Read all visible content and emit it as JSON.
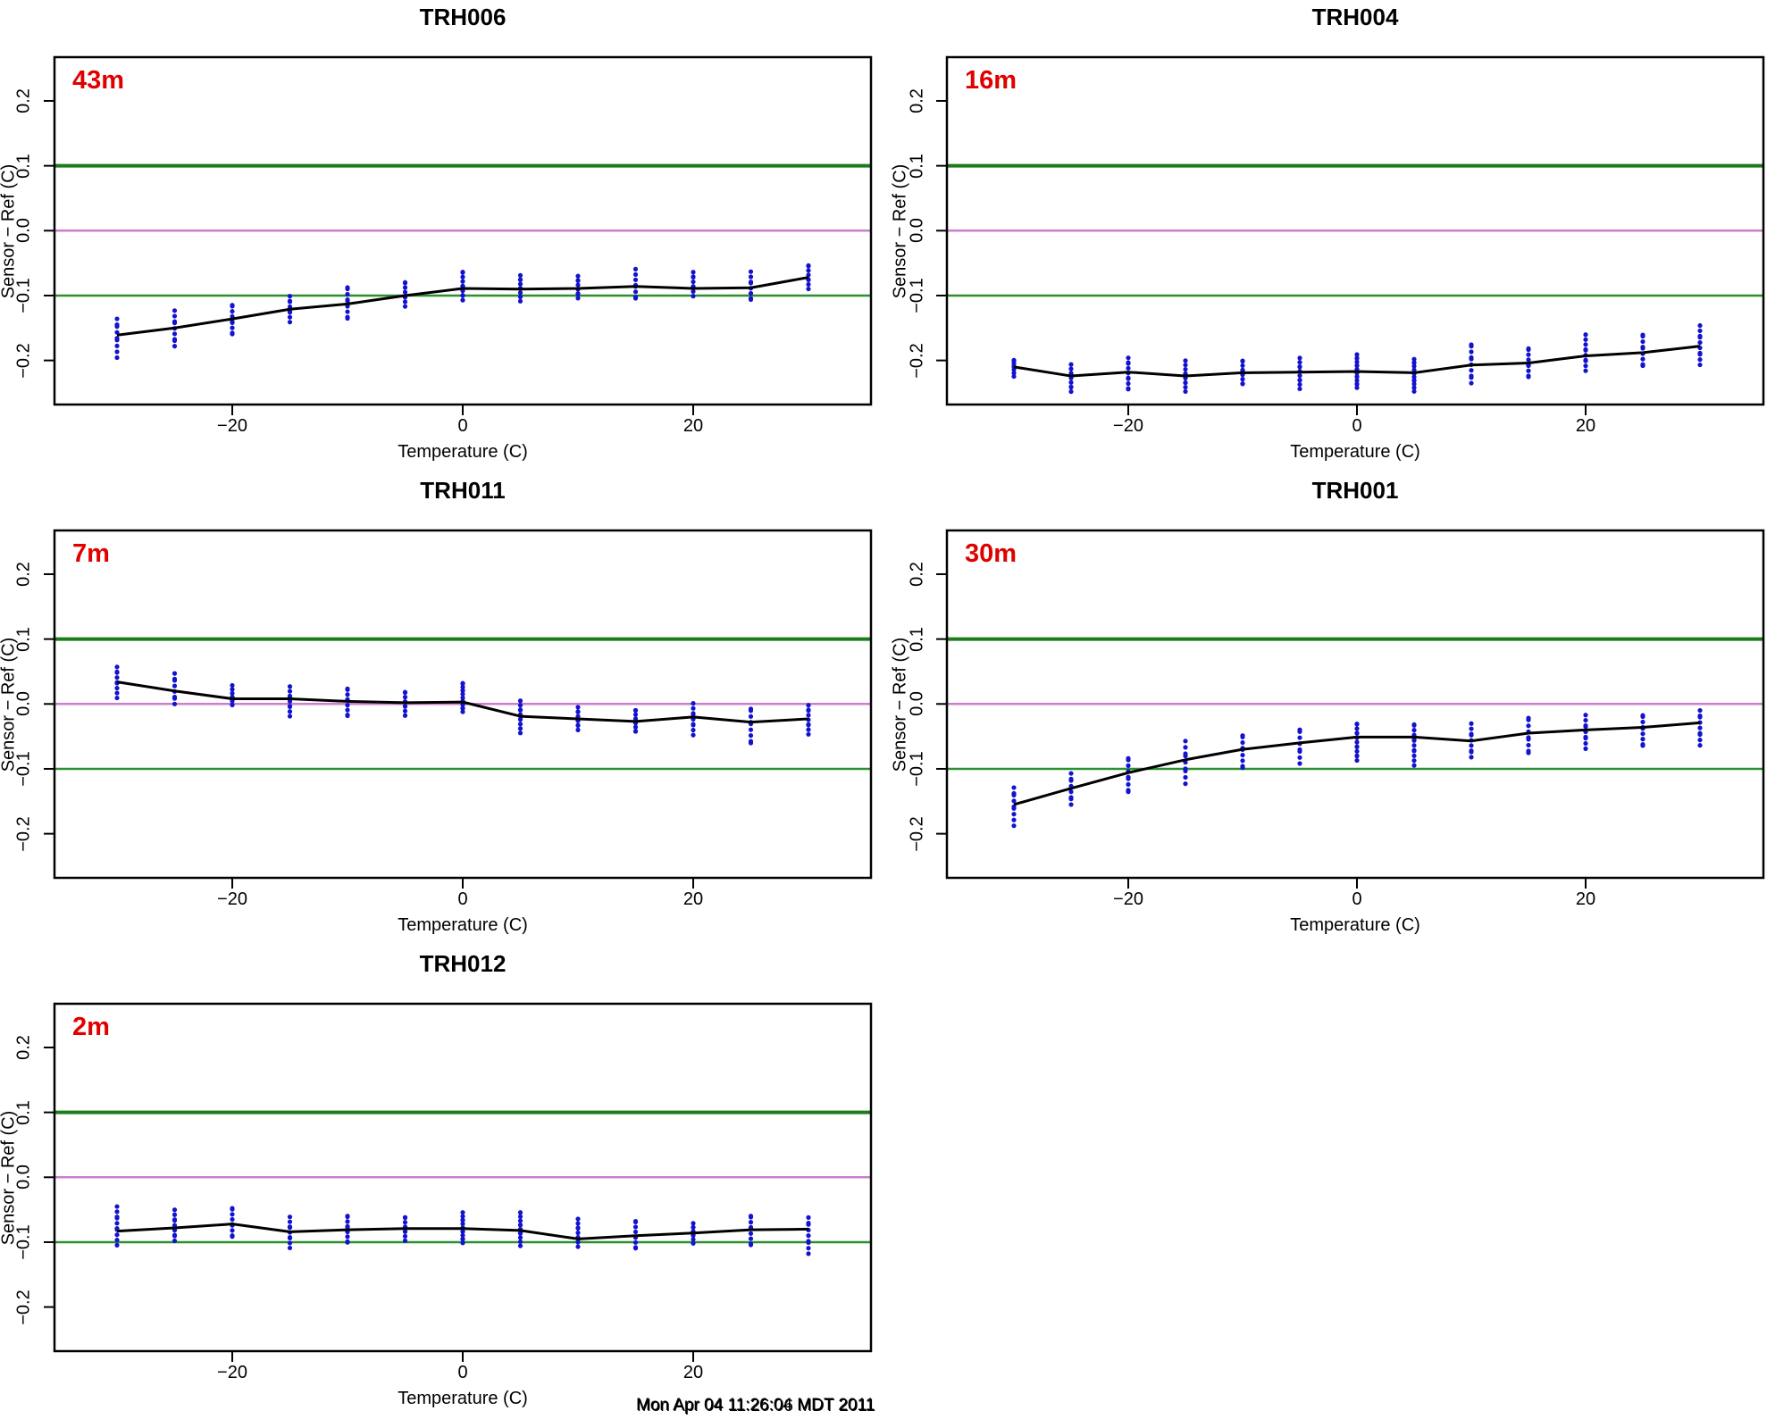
{
  "figure": {
    "background": "#ffffff",
    "timestamp_lines": [
      "Mon Apr 04 11:26:04 MDT 2011",
      "Mon Apr 04 11:26:06 MDT 2011"
    ]
  },
  "colors": {
    "point": "#1313cf",
    "mean_line": "#000000",
    "guide_upper_green": "#1c7c1c",
    "guide_zero_magenta": "#cc7ecc",
    "guide_lower_green": "#2f8f2f",
    "height_label": "#e10000",
    "frame": "#000000"
  },
  "axes": {
    "x_label": "Temperature (C)",
    "y_label": "Sensor − Ref (C)",
    "x_ticks": [
      -20,
      0,
      20
    ],
    "x_tick_labels": [
      "−20",
      "0",
      "20"
    ],
    "y_ticks": [
      0.2,
      0.1,
      0.0,
      -0.1,
      -0.2
    ],
    "y_tick_labels": [
      "0.2",
      "0.1",
      "0.0",
      "−0.1",
      "−0.2"
    ],
    "xlim": [
      -35.5,
      35.5
    ],
    "ylim": [
      -0.268,
      0.268
    ],
    "reference_lines": [
      0.1,
      0.0,
      -0.1
    ],
    "grid": "off",
    "legend": "none"
  },
  "chart_data": [
    {
      "type": "scatter",
      "title": "TRH006",
      "height_label": "43m",
      "xlabel": "Temperature (C)",
      "ylabel": "Sensor − Ref (C)",
      "x": [
        -30,
        -25,
        -20,
        -15,
        -10,
        -5,
        0,
        5,
        10,
        15,
        20,
        25,
        30
      ],
      "mean": [
        -0.161,
        -0.15,
        -0.136,
        -0.121,
        -0.113,
        -0.1,
        -0.089,
        -0.09,
        -0.089,
        -0.086,
        -0.089,
        -0.088,
        -0.072
      ],
      "clusters": [
        {
          "t": -30,
          "n": 9,
          "lo": -0.193,
          "hi": -0.135
        },
        {
          "t": -25,
          "n": 9,
          "lo": -0.178,
          "hi": -0.125
        },
        {
          "t": -20,
          "n": 9,
          "lo": -0.162,
          "hi": -0.113
        },
        {
          "t": -15,
          "n": 8,
          "lo": -0.14,
          "hi": -0.1
        },
        {
          "t": -10,
          "n": 9,
          "lo": -0.137,
          "hi": -0.085
        },
        {
          "t": -5,
          "n": 8,
          "lo": -0.115,
          "hi": -0.078
        },
        {
          "t": 0,
          "n": 10,
          "lo": -0.108,
          "hi": -0.062
        },
        {
          "t": 5,
          "n": 9,
          "lo": -0.106,
          "hi": -0.068
        },
        {
          "t": 10,
          "n": 8,
          "lo": -0.104,
          "hi": -0.07
        },
        {
          "t": 15,
          "n": 8,
          "lo": -0.107,
          "hi": -0.062
        },
        {
          "t": 20,
          "n": 8,
          "lo": -0.1,
          "hi": -0.063
        },
        {
          "t": 25,
          "n": 8,
          "lo": -0.108,
          "hi": -0.065
        },
        {
          "t": 30,
          "n": 8,
          "lo": -0.088,
          "hi": -0.052
        }
      ]
    },
    {
      "type": "scatter",
      "title": "TRH004",
      "height_label": "16m",
      "xlabel": "Temperature (C)",
      "ylabel": "Sensor − Ref (C)",
      "x": [
        -30,
        -25,
        -20,
        -15,
        -10,
        -5,
        0,
        5,
        10,
        15,
        20,
        25,
        30
      ],
      "mean": [
        -0.21,
        -0.224,
        -0.218,
        -0.224,
        -0.219,
        -0.218,
        -0.217,
        -0.219,
        -0.207,
        -0.204,
        -0.193,
        -0.188,
        -0.178
      ],
      "clusters": [
        {
          "t": -30,
          "n": 8,
          "lo": -0.222,
          "hi": -0.198
        },
        {
          "t": -25,
          "n": 9,
          "lo": -0.248,
          "hi": -0.208
        },
        {
          "t": -20,
          "n": 10,
          "lo": -0.247,
          "hi": -0.196
        },
        {
          "t": -15,
          "n": 10,
          "lo": -0.247,
          "hi": -0.203
        },
        {
          "t": -10,
          "n": 9,
          "lo": -0.238,
          "hi": -0.198
        },
        {
          "t": -5,
          "n": 10,
          "lo": -0.242,
          "hi": -0.198
        },
        {
          "t": 0,
          "n": 14,
          "lo": -0.243,
          "hi": -0.19
        },
        {
          "t": 5,
          "n": 13,
          "lo": -0.245,
          "hi": -0.198
        },
        {
          "t": 10,
          "n": 10,
          "lo": -0.235,
          "hi": -0.173
        },
        {
          "t": 15,
          "n": 9,
          "lo": -0.228,
          "hi": -0.18
        },
        {
          "t": 20,
          "n": 10,
          "lo": -0.215,
          "hi": -0.163
        },
        {
          "t": 25,
          "n": 9,
          "lo": -0.21,
          "hi": -0.158
        },
        {
          "t": 30,
          "n": 10,
          "lo": -0.205,
          "hi": -0.148
        }
      ]
    },
    {
      "type": "scatter",
      "title": "TRH011",
      "height_label": "7m",
      "xlabel": "Temperature (C)",
      "ylabel": "Sensor − Ref (C)",
      "x": [
        -30,
        -25,
        -20,
        -15,
        -10,
        -5,
        0,
        5,
        10,
        15,
        20,
        25,
        30
      ],
      "mean": [
        0.034,
        0.02,
        0.008,
        0.008,
        0.004,
        0.002,
        0.003,
        -0.019,
        -0.023,
        -0.027,
        -0.02,
        -0.028,
        -0.023
      ],
      "clusters": [
        {
          "t": -30,
          "n": 9,
          "lo": 0.012,
          "hi": 0.058
        },
        {
          "t": -25,
          "n": 8,
          "lo": 0.0,
          "hi": 0.047
        },
        {
          "t": -20,
          "n": 8,
          "lo": -0.004,
          "hi": 0.026
        },
        {
          "t": -15,
          "n": 9,
          "lo": -0.018,
          "hi": 0.026
        },
        {
          "t": -10,
          "n": 9,
          "lo": -0.02,
          "hi": 0.026
        },
        {
          "t": -5,
          "n": 8,
          "lo": -0.016,
          "hi": 0.02
        },
        {
          "t": 0,
          "n": 13,
          "lo": -0.013,
          "hi": 0.034
        },
        {
          "t": 5,
          "n": 10,
          "lo": -0.042,
          "hi": 0.004
        },
        {
          "t": 10,
          "n": 8,
          "lo": -0.04,
          "hi": -0.005
        },
        {
          "t": 15,
          "n": 9,
          "lo": -0.045,
          "hi": -0.008
        },
        {
          "t": 20,
          "n": 9,
          "lo": -0.047,
          "hi": 0.0
        },
        {
          "t": 25,
          "n": 9,
          "lo": -0.062,
          "hi": -0.005
        },
        {
          "t": 30,
          "n": 9,
          "lo": -0.045,
          "hi": -0.002
        }
      ]
    },
    {
      "type": "scatter",
      "title": "TRH001",
      "height_label": "30m",
      "xlabel": "Temperature (C)",
      "ylabel": "Sensor − Ref (C)",
      "x": [
        -30,
        -25,
        -20,
        -15,
        -10,
        -5,
        0,
        5,
        10,
        15,
        20,
        25,
        30
      ],
      "mean": [
        -0.155,
        -0.13,
        -0.106,
        -0.086,
        -0.07,
        -0.06,
        -0.051,
        -0.051,
        -0.057,
        -0.045,
        -0.04,
        -0.036,
        -0.029
      ],
      "clusters": [
        {
          "t": -30,
          "n": 9,
          "lo": -0.185,
          "hi": -0.128
        },
        {
          "t": -25,
          "n": 8,
          "lo": -0.155,
          "hi": -0.107
        },
        {
          "t": -20,
          "n": 9,
          "lo": -0.138,
          "hi": -0.082
        },
        {
          "t": -15,
          "n": 9,
          "lo": -0.122,
          "hi": -0.058
        },
        {
          "t": -10,
          "n": 9,
          "lo": -0.1,
          "hi": -0.046
        },
        {
          "t": -5,
          "n": 8,
          "lo": -0.09,
          "hi": -0.038
        },
        {
          "t": 0,
          "n": 13,
          "lo": -0.088,
          "hi": -0.028
        },
        {
          "t": 5,
          "n": 12,
          "lo": -0.092,
          "hi": -0.03
        },
        {
          "t": 10,
          "n": 9,
          "lo": -0.082,
          "hi": -0.032
        },
        {
          "t": 15,
          "n": 9,
          "lo": -0.078,
          "hi": -0.02
        },
        {
          "t": 20,
          "n": 9,
          "lo": -0.068,
          "hi": -0.018
        },
        {
          "t": 25,
          "n": 9,
          "lo": -0.066,
          "hi": -0.015
        },
        {
          "t": 30,
          "n": 9,
          "lo": -0.062,
          "hi": -0.01
        }
      ]
    },
    {
      "type": "scatter",
      "title": "TRH012",
      "height_label": "2m",
      "xlabel": "Temperature (C)",
      "ylabel": "Sensor − Ref (C)",
      "x": [
        -30,
        -25,
        -20,
        -15,
        -10,
        -5,
        0,
        5,
        10,
        15,
        20,
        25,
        30
      ],
      "mean": [
        -0.083,
        -0.078,
        -0.072,
        -0.084,
        -0.081,
        -0.079,
        -0.079,
        -0.082,
        -0.095,
        -0.09,
        -0.086,
        -0.081,
        -0.08
      ],
      "clusters": [
        {
          "t": -30,
          "n": 10,
          "lo": -0.102,
          "hi": -0.046
        },
        {
          "t": -25,
          "n": 9,
          "lo": -0.098,
          "hi": -0.052
        },
        {
          "t": -20,
          "n": 9,
          "lo": -0.094,
          "hi": -0.046
        },
        {
          "t": -15,
          "n": 9,
          "lo": -0.108,
          "hi": -0.062
        },
        {
          "t": -10,
          "n": 9,
          "lo": -0.102,
          "hi": -0.057
        },
        {
          "t": -5,
          "n": 8,
          "lo": -0.096,
          "hi": -0.06
        },
        {
          "t": 0,
          "n": 12,
          "lo": -0.102,
          "hi": -0.056
        },
        {
          "t": 5,
          "n": 11,
          "lo": -0.103,
          "hi": -0.057
        },
        {
          "t": 10,
          "n": 9,
          "lo": -0.107,
          "hi": -0.066
        },
        {
          "t": 15,
          "n": 9,
          "lo": -0.112,
          "hi": -0.066
        },
        {
          "t": 20,
          "n": 8,
          "lo": -0.101,
          "hi": -0.07
        },
        {
          "t": 25,
          "n": 9,
          "lo": -0.106,
          "hi": -0.057
        },
        {
          "t": 30,
          "n": 9,
          "lo": -0.116,
          "hi": -0.062
        }
      ]
    }
  ]
}
